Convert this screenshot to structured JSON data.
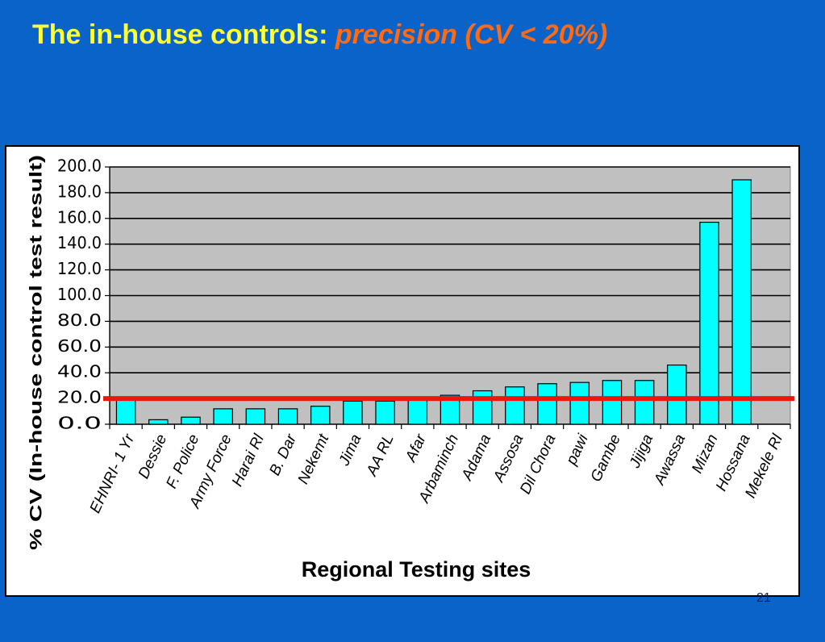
{
  "slide": {
    "title_main": "The in-house controls:",
    "title_accent": "precision (CV < 20%)",
    "page_number": "21"
  },
  "colors": {
    "background": "#0a63c9",
    "title_main": "#ffff33",
    "title_accent": "#ff6a13",
    "plot_area": "#c0c0c0",
    "bar_fill": "#00ffff",
    "threshold_line": "#e8180c"
  },
  "chart_data": {
    "type": "bar",
    "title": "",
    "xlabel": "Regional Testing sites",
    "ylabel": "% CV (In-house control test result)",
    "ylim": [
      0,
      200
    ],
    "ytick_values": [
      0,
      20,
      40,
      60,
      80,
      100,
      120,
      140,
      160,
      180,
      200
    ],
    "ytick_labels": [
      "0.0",
      "20.0",
      "40.0",
      "60.0",
      "80.0",
      "100.0",
      "120.0",
      "140.0",
      "160.0",
      "180.0",
      "200.0"
    ],
    "grid": true,
    "threshold": 20,
    "categories": [
      "EHNRI- 1 Yr",
      "Dessie",
      "F. Police",
      "Army Force",
      "Harai Rl",
      "B. Dar",
      "Nekemt",
      "Jima",
      "AA RL",
      "Afar",
      "Arbaminch",
      "Adama",
      "Assosa",
      "Dil Chora",
      "pawi",
      "Gambe",
      "Jijiga",
      "Awassa",
      "Mizan",
      "Hossana",
      "Mekele Rl"
    ],
    "values": [
      20.5,
      3.5,
      5.5,
      12,
      12,
      12,
      14,
      18,
      18,
      20,
      22.5,
      26,
      29,
      31.5,
      32.5,
      34,
      34,
      46,
      157,
      190,
      0
    ]
  }
}
